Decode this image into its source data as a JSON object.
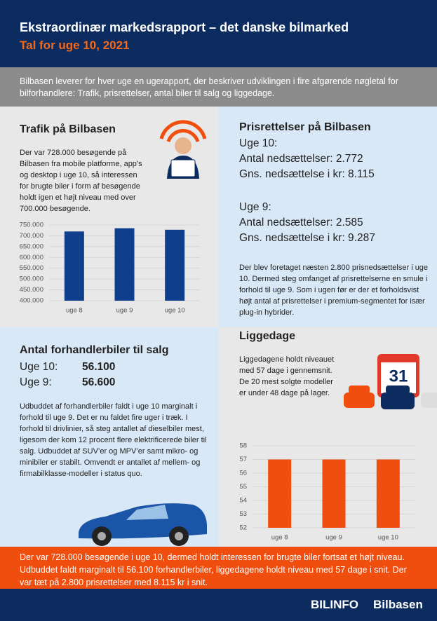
{
  "header": {
    "title": "Ekstraordinær markedsrapport – det danske bilmarked",
    "subtitle": "Tal for uge 10, 2021"
  },
  "intro": "Bilbasen leverer for hver uge en ugerapport, der beskriver udviklingen i fire afgørende nøgletal for bilforhandlere: Trafik, prisrettelser, antal biler til salg og liggedage.",
  "traffic": {
    "title": "Trafik på Bilbasen",
    "text": "Der var 728.000 besøgende på Bilbasen fra mobile platforme, app’s og desktop i uge 10, så interessen for brugte biler i form af besøgende holdt igen et højt niveau med over 700.000 besøgende."
  },
  "price": {
    "title": "Prisrettelser på Bilbasen",
    "week10": {
      "label": "Uge 10:",
      "count": "Antal nedsættelser: 2.772",
      "avg": "Gns. nedsættelse i kr: 8.115"
    },
    "week9": {
      "label": "Uge 9:",
      "count": "Antal nedsættelser: 2.585",
      "avg": "Gns. nedsættelse i kr: 9.287"
    },
    "text": "Der blev foretaget  næsten 2.800 prisnedsættelser i uge 10. Dermed steg omfanget af prisrettelserne en smule i forhold til uge 9. Som i ugen før er der et forholdsvist højt antal af prisrettelser i premium-segmentet for især plug-in hybrider."
  },
  "dealers": {
    "title": "Antal forhandlerbiler til salg",
    "rows": [
      [
        "Uge 10:",
        "56.100"
      ],
      [
        "Uge 9:",
        "56.600"
      ]
    ],
    "text": "Udbuddet af forhandlerbiler faldt i uge 10 marginalt i forhold til uge 9. Det er nu faldet fire uger i træk. I forhold til drivlinier, så steg antallet af dieselbiler mest, ligesom der kom 12 procent flere elektrificerede biler til salg. Udbuddet af SUV’er og MPV’er samt mikro- og minibiler er stabilt. Omvendt er antallet af mellem- og firmabilklasse-modeller i status quo."
  },
  "liggedage": {
    "title": "Liggedage",
    "text": "Liggedagene holdt niveauet med 57 dage i gennemsnit. De 20 mest solgte modeller er  under 48 dage på lager.",
    "calendar": "31"
  },
  "summary": "Der var 728.000 besøgende i uge 10, dermed holdt interessen for brugte biler fortsat et højt niveau. Udbuddet faldt marginalt til 56.100 forhandlerbiler, liggedagene holdt niveau med 57 dage i snit. Der var tæt på 2.800 prisrettelser med 8.115 kr i snit.",
  "footer": {
    "brand": "BILINFO",
    "site": "Bilbasen"
  },
  "chart_data": [
    {
      "type": "bar",
      "categories": [
        "uge 8",
        "uge 9",
        "uge 10"
      ],
      "values": [
        720000,
        735000,
        728000
      ],
      "color": "#0f3e8c",
      "ylim": [
        400000,
        750000
      ],
      "yticks": [
        {
          "value": 400000,
          "label": "400.000"
        },
        {
          "value": 450000,
          "label": "450.000"
        },
        {
          "value": 500000,
          "label": "500.000"
        },
        {
          "value": 550000,
          "label": "550.000"
        },
        {
          "value": 600000,
          "label": "600.000"
        },
        {
          "value": 650000,
          "label": "650.000"
        },
        {
          "value": 700000,
          "label": "700.000"
        },
        {
          "value": 750000,
          "label": "750.000"
        }
      ],
      "grid": true
    },
    {
      "type": "bar",
      "categories": [
        "uge 8",
        "uge 9",
        "uge 10"
      ],
      "values": [
        57,
        57,
        57
      ],
      "color": "#f04e0f",
      "ylim": [
        52,
        58
      ],
      "yticks": [
        52,
        53,
        54,
        55,
        56,
        57,
        58
      ],
      "grid": true
    }
  ]
}
